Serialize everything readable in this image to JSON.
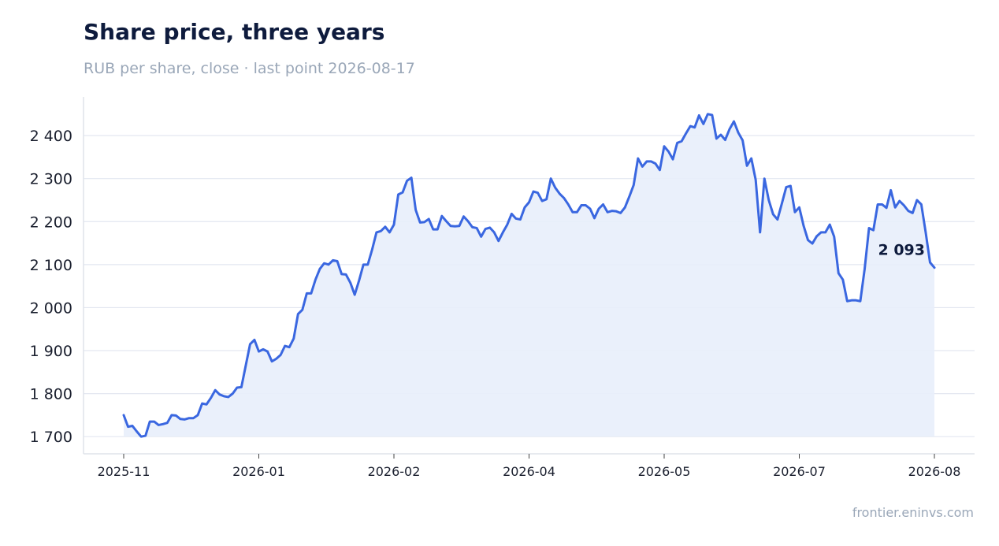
{
  "header": {
    "title": "Share price, three years",
    "subtitle": "RUB per share, close · last point 2026-08-17"
  },
  "footer": {
    "source": "frontier.eninvs.com"
  },
  "colors": {
    "line": "#3a67e0",
    "area": "#e8eefb",
    "grid": "#e3e7f0",
    "axis": "#dfe3ea"
  },
  "chart_data": {
    "type": "area",
    "title": "Share price, three years",
    "subtitle": "RUB per share, close · last point 2026-08-17",
    "xlabel": "",
    "ylabel": "",
    "ylim": [
      1660,
      2490
    ],
    "yticks": [
      1700,
      1800,
      1900,
      2000,
      2100,
      2200,
      2300,
      2400
    ],
    "ytick_labels": [
      "1 700",
      "1 800",
      "1 900",
      "2 000",
      "2 100",
      "2 200",
      "2 300",
      "2 400"
    ],
    "xticks": [
      "2025-11",
      "2026-01",
      "2026-02",
      "2026-04",
      "2026-05",
      "2026-07",
      "2026-08"
    ],
    "grid": true,
    "end_label": "2 093",
    "values": [
      1750,
      1723,
      1725,
      1712,
      1700,
      1702,
      1735,
      1735,
      1727,
      1729,
      1732,
      1750,
      1749,
      1741,
      1740,
      1743,
      1743,
      1750,
      1777,
      1775,
      1790,
      1808,
      1798,
      1794,
      1792,
      1800,
      1814,
      1815,
      1865,
      1915,
      1925,
      1898,
      1903,
      1898,
      1875,
      1881,
      1890,
      1911,
      1908,
      1928,
      1985,
      1995,
      2033,
      2033,
      2065,
      2090,
      2103,
      2100,
      2110,
      2108,
      2078,
      2077,
      2058,
      2030,
      2063,
      2100,
      2100,
      2135,
      2175,
      2178,
      2188,
      2175,
      2193,
      2263,
      2268,
      2295,
      2302,
      2227,
      2198,
      2199,
      2206,
      2182,
      2182,
      2213,
      2201,
      2190,
      2189,
      2190,
      2212,
      2201,
      2187,
      2185,
      2165,
      2183,
      2186,
      2175,
      2155,
      2175,
      2193,
      2218,
      2207,
      2205,
      2233,
      2245,
      2270,
      2267,
      2248,
      2252,
      2300,
      2279,
      2265,
      2255,
      2240,
      2222,
      2222,
      2238,
      2238,
      2230,
      2208,
      2230,
      2240,
      2222,
      2225,
      2224,
      2220,
      2233,
      2258,
      2285,
      2347,
      2328,
      2340,
      2340,
      2335,
      2320,
      2375,
      2363,
      2345,
      2383,
      2387,
      2405,
      2422,
      2419,
      2447,
      2427,
      2450,
      2448,
      2393,
      2402,
      2390,
      2415,
      2433,
      2407,
      2389,
      2330,
      2347,
      2297,
      2175,
      2300,
      2250,
      2217,
      2205,
      2242,
      2280,
      2283,
      2222,
      2233,
      2190,
      2157,
      2149,
      2166,
      2175,
      2175,
      2193,
      2165,
      2080,
      2065,
      2015,
      2017,
      2017,
      2015,
      2090,
      2185,
      2180,
      2240,
      2240,
      2232,
      2273,
      2233,
      2248,
      2238,
      2225,
      2220,
      2250,
      2240,
      2175,
      2105,
      2093
    ]
  }
}
